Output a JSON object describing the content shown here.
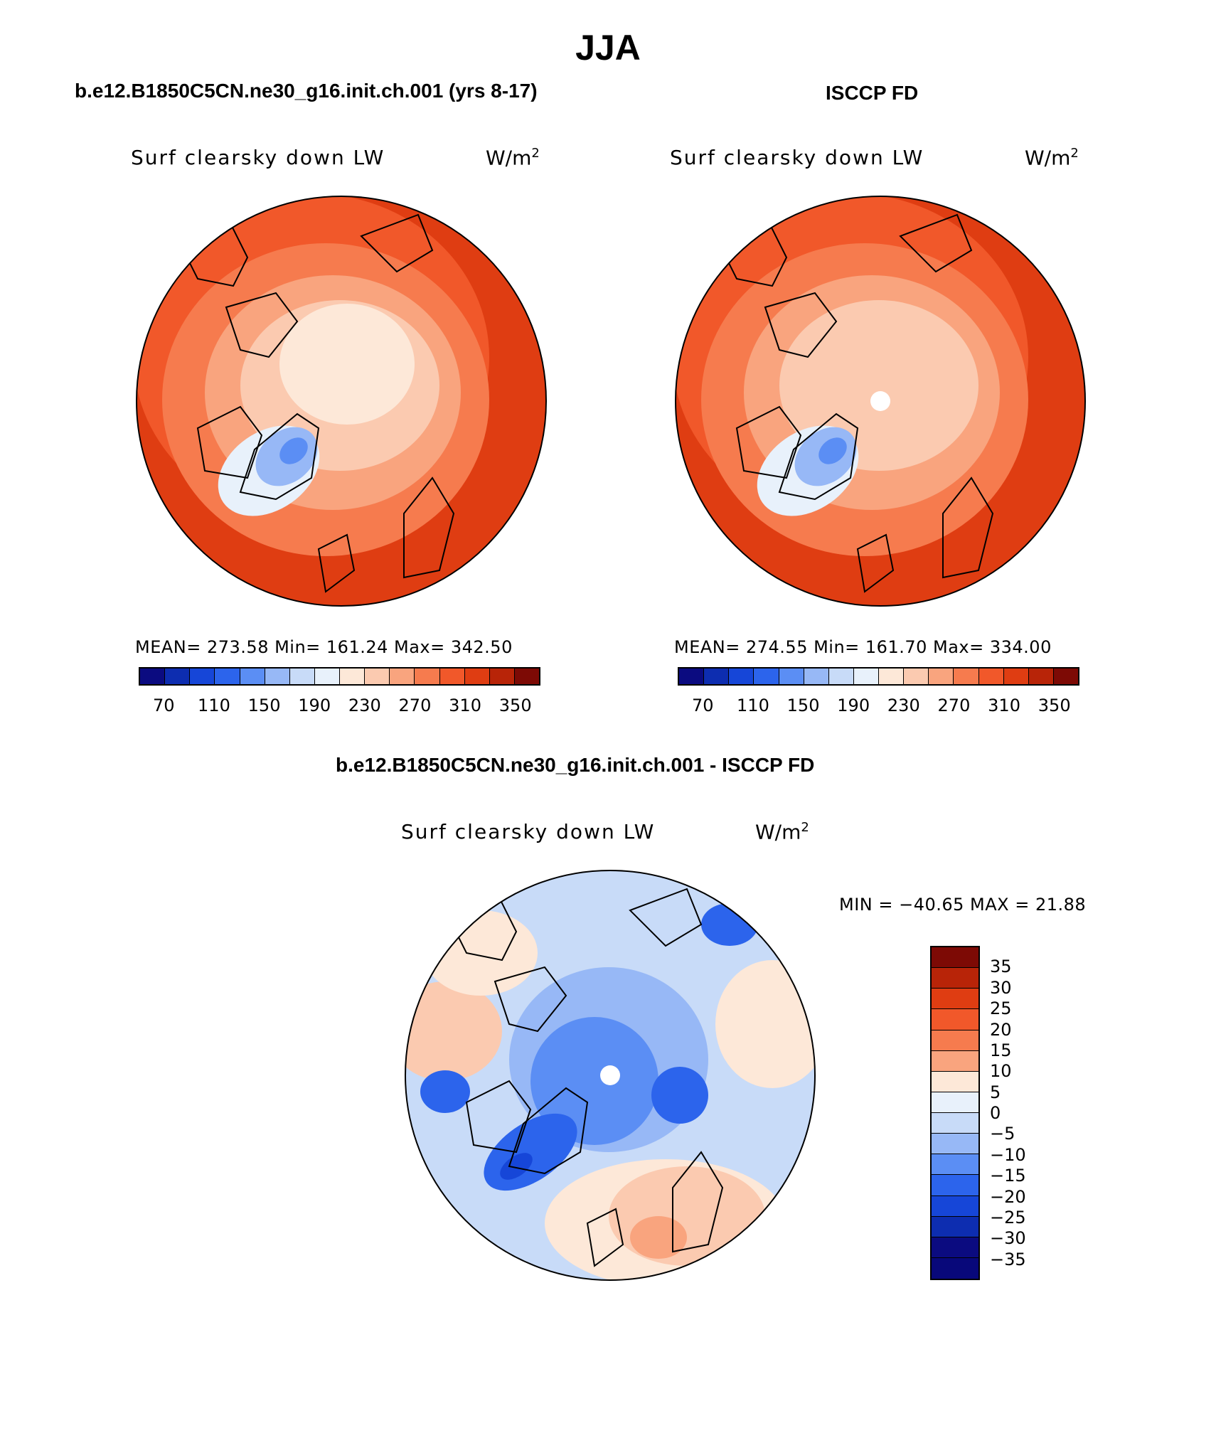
{
  "title": "JJA",
  "panels": [
    {
      "id": "model",
      "title": "b.e12.B1850C5CN.ne30_g16.init.ch.001 (yrs 8-17)",
      "field": "Surf clearsky down LW",
      "units": "W/m",
      "units_sup": "2",
      "stats": "MEAN= 273.58   Min= 161.24   Max= 342.50"
    },
    {
      "id": "obs",
      "title": "ISCCP FD",
      "field": "Surf clearsky down LW",
      "units": "W/m",
      "units_sup": "2",
      "stats": "MEAN= 274.55   Min= 161.70   Max= 334.00"
    }
  ],
  "diff": {
    "title": "b.e12.B1850C5CN.ne30_g16.init.ch.001 - ISCCP FD",
    "field": "Surf clearsky down LW",
    "units": "W/m",
    "units_sup": "2",
    "stats": "MIN = −40.65 MAX =   21.88"
  },
  "colorbar_main": {
    "colors": [
      "#0b0b80",
      "#0d2db0",
      "#1646d8",
      "#2c64ec",
      "#5b8ef4",
      "#97b8f6",
      "#c8dbf8",
      "#e8f1fb",
      "#fde8d8",
      "#fbcab0",
      "#f9a47e",
      "#f67b4e",
      "#f1582a",
      "#df3d12",
      "#b82408",
      "#7d0a05"
    ],
    "labels": [
      "70",
      "110",
      "150",
      "190",
      "230",
      "270",
      "310",
      "350"
    ]
  },
  "colorbar_diff": {
    "colors": [
      "#7d0a05",
      "#b82408",
      "#df3d12",
      "#f1582a",
      "#f67b4e",
      "#f9a47e",
      "#fde8d8",
      "#e8f1fb",
      "#c8dbf8",
      "#97b8f6",
      "#5b8ef4",
      "#2c64ec",
      "#1646d8",
      "#0d2db0",
      "#0b0b80",
      "#08087a"
    ],
    "labels": [
      "35",
      "30",
      "25",
      "20",
      "15",
      "10",
      "5",
      "0",
      "−5",
      "−10",
      "−15",
      "−20",
      "−25",
      "−30",
      "−35"
    ]
  }
}
